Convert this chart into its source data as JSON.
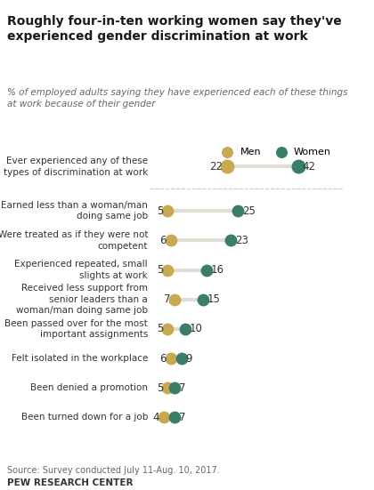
{
  "title": "Roughly four-in-ten working women say they've\nexperienced gender discrimination at work",
  "subtitle": "% of employed adults saying they have experienced each of these things\nat work because of their gender",
  "source": "Source: Survey conducted July 11-Aug. 10, 2017.",
  "source2": "PEW RESEARCH CENTER",
  "categories": [
    "Ever experienced any of these\ntypes of discrimination at work",
    "Earned less than a woman/man\ndoing same job",
    "Were treated as if they were not\ncompetent",
    "Experienced repeated, small\nslights at work",
    "Received less support from\nsenior leaders than a\nwoman/man doing same job",
    "Been passed over for the most\nimportant assignments",
    "Felt isolated in the workplace",
    "Been denied a promotion",
    "Been turned down for a job"
  ],
  "men_values": [
    22,
    5,
    6,
    5,
    7,
    5,
    6,
    5,
    4
  ],
  "women_values": [
    42,
    25,
    23,
    16,
    15,
    10,
    9,
    7,
    7
  ],
  "men_color": "#C8A951",
  "women_color": "#3A7D6B",
  "line_color": "#E0DDD5",
  "bg_color": "#FFFFFF",
  "title_color": "#1A1A1A",
  "subtitle_color": "#666666",
  "label_color": "#333333",
  "separator_row": 0,
  "dot_size": 80,
  "first_dot_size": 110
}
